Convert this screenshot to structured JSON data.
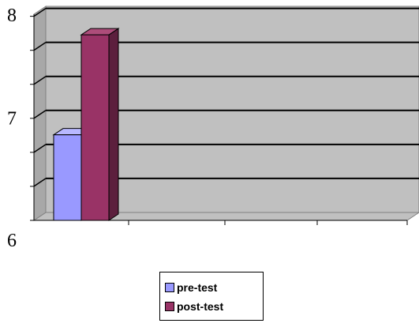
{
  "chart_data": {
    "type": "bar",
    "categories": [
      ""
    ],
    "series": [
      {
        "name": "pre-test",
        "values": [
          6.83
        ],
        "color": "#9999ff"
      },
      {
        "name": "post-test",
        "values": [
          7.8
        ],
        "color": "#993366"
      }
    ],
    "ylim": [
      6,
      8
    ],
    "ytick_labels": [
      "6",
      "7",
      "8"
    ],
    "y_label_values": [
      6,
      7,
      8
    ],
    "y_minor_step": 0.33,
    "wall_color": "#c0c0c0",
    "gridline_color": "#000000",
    "grid": true,
    "legend_position": "bottom",
    "three_d": true,
    "title": "",
    "xlabel": "",
    "ylabel": ""
  }
}
